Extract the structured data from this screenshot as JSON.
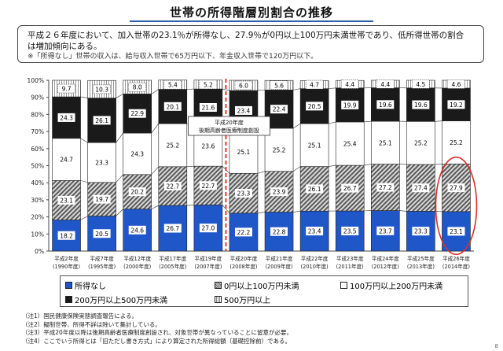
{
  "title": "世帯の所得階層別割合の推移",
  "summary": {
    "line1": "平成２６年度において、加入世帯の23.1％が所得なし、27.9％が0円以上100万円未満世帯であり、低所得世帯の割合",
    "line2": "は増加傾向にある。",
    "note": "※「所得なし」世帯の収入は、給与収入世帯で65万円以下、年金収入世帯で120万円以下。"
  },
  "legend_labels": [
    "所得なし",
    "0円以上100万円未満",
    "100万円以上200万円未満",
    "200万円以上500万円未満",
    "500万円以上"
  ],
  "annotation": [
    "平成20年度",
    "後期高齢者医療制度創設"
  ],
  "notes": [
    "（注1）国民健康保険実態調査報告による。",
    "（注2）擬制世帯、所得不詳は除いて集計している。",
    "（注3）平成20年度以降は後期高齢者医療制度創設され、対象世帯が異なっていることに留意が必要。",
    "（注4）ここでいう所得とは「旧ただし書き方式」により算定された所得総額（基礎控除前）である。"
  ],
  "page_number": "8",
  "colors": {
    "seg1": "#1f57c9",
    "seg2": "#8a8a8a",
    "seg3": "#ffffff",
    "seg4": "#1a1a1a",
    "seg5": "#ffffff",
    "divider": "#e0362d",
    "highlight": "#d9302b",
    "title_rule": "#2f5fa8"
  },
  "chart_data": {
    "type": "bar",
    "stacked": true,
    "categories": [
      [
        "平成2年度",
        "(1990年度)"
      ],
      [
        "平成7年度",
        "(1995年度)"
      ],
      [
        "平成12年度",
        "(2000年度)"
      ],
      [
        "平成17年度",
        "(2005年度)"
      ],
      [
        "平成19年度",
        "(2007年度)"
      ],
      [
        "平成20年度",
        "(2008年度)"
      ],
      [
        "平成21年度",
        "(2009年度)"
      ],
      [
        "平成22年度",
        "(2010年度)"
      ],
      [
        "平成23年度",
        "(2011年度)"
      ],
      [
        "平成24年度",
        "(2012年度)"
      ],
      [
        "平成25年度",
        "(2013年度)"
      ],
      [
        "平成26年度",
        "(2014年度)"
      ]
    ],
    "series": [
      {
        "name": "所得なし",
        "values": [
          18.2,
          20.5,
          24.6,
          26.7,
          27.0,
          22.2,
          22.8,
          23.4,
          23.5,
          23.7,
          23.3,
          23.1
        ]
      },
      {
        "name": "0円以上100万円未満",
        "values": [
          23.1,
          19.7,
          20.2,
          22.7,
          22.7,
          23.3,
          23.9,
          26.1,
          26.7,
          27.2,
          27.4,
          27.9
        ]
      },
      {
        "name": "100万円以上200万円未満",
        "values": [
          24.7,
          23.3,
          24.3,
          25.2,
          23.6,
          25.1,
          25.2,
          25.1,
          25.4,
          25.1,
          25.2,
          25.2
        ]
      },
      {
        "name": "200万円以上500万円未満",
        "values": [
          24.3,
          26.1,
          22.9,
          20.1,
          21.6,
          23.4,
          22.4,
          20.5,
          19.9,
          19.6,
          19.6,
          19.2
        ]
      },
      {
        "name": "500万円以上",
        "values": [
          9.7,
          10.3,
          8.0,
          5.4,
          5.2,
          6.0,
          5.6,
          4.7,
          4.4,
          4.4,
          4.5,
          4.6
        ]
      }
    ],
    "ylim": [
      0,
      100
    ],
    "y_ticks": [
      "0%",
      "10%",
      "20%",
      "30%",
      "40%",
      "50%",
      "60%",
      "70%",
      "80%",
      "90%",
      "100%"
    ],
    "grid": false,
    "legend_position": "bottom",
    "divider_between": [
      4,
      5
    ],
    "highlight_category": 11
  }
}
